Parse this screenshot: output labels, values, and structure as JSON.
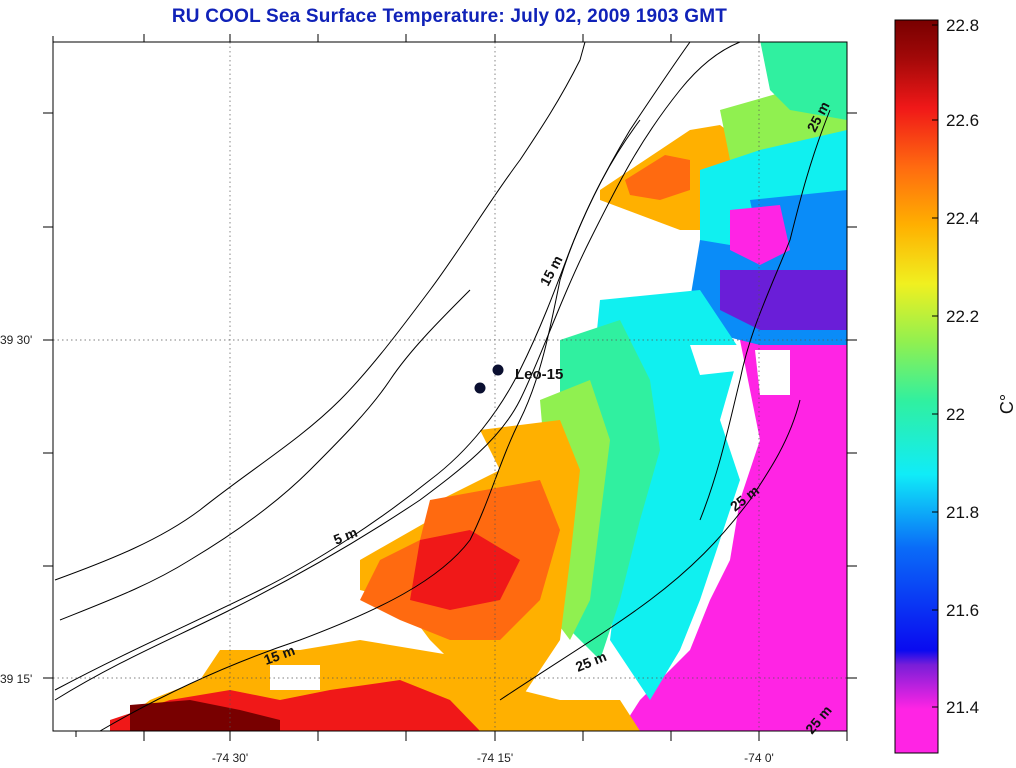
{
  "title": "RU COOL  Sea Surface Temperature:  July 02, 2009 1903 GMT",
  "map": {
    "lat_labels": [
      "39 30'",
      "39 15'"
    ],
    "lon_labels": [
      "-74 30'",
      "-74 15'",
      "-74 0'"
    ],
    "station": {
      "name": "Leo-15"
    },
    "isobath_labels": [
      "15 m",
      "5 m",
      "15 m",
      "25 m",
      "25 m",
      "25 m",
      "25 m"
    ],
    "land_color": "#ffffff",
    "coastline_color": "#000000"
  },
  "colorbar": {
    "min": 21.3,
    "max": 22.8,
    "ticks": [
      "22.8",
      "22.6",
      "22.4",
      "22.2",
      "22",
      "21.8",
      "21.6",
      "21.4"
    ],
    "unit": "C°",
    "colormap": [
      "#ff24e4",
      "#6a1ed8",
      "#0a14f0",
      "#0a8cf8",
      "#10f0f0",
      "#30f0a0",
      "#90f050",
      "#f0f020",
      "#ffb000",
      "#ff6a10",
      "#f01818",
      "#a00808",
      "#780000"
    ]
  }
}
